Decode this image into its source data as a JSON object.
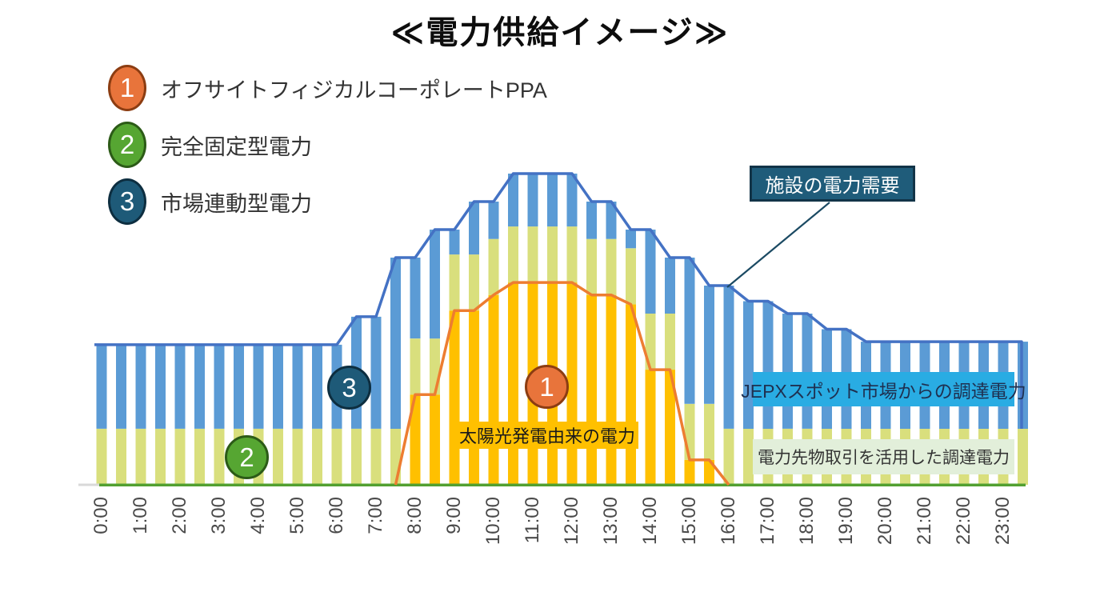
{
  "title": "≪電力供給イメージ≫",
  "legend": {
    "items": [
      {
        "number": "1",
        "label": "オフサイトフィジカルコーポレートPPA"
      },
      {
        "number": "2",
        "label": "完全固定型電力"
      },
      {
        "number": "3",
        "label": "市場連動型電力"
      }
    ]
  },
  "annotations": {
    "demand_callout": "施設の電力需要",
    "jepx_area": "JEPXスポット市場からの調達電力",
    "futures_area": "電力先物取引を活用した調達電力",
    "solar_area": "太陽光発電由来の電力",
    "chart_badge_1": "1",
    "chart_badge_2": "2",
    "chart_badge_3": "3"
  },
  "colors": {
    "bar_blue": "#5B9BD5",
    "bar_yellow": "#D9DF7D",
    "bar_orange": "#FFC000",
    "demand_line": "#4472C4",
    "solar_line": "#ED7D31",
    "axis_green": "#52A031",
    "axis_stub_gray": "#D9D9D9",
    "badge1_fill": "#E8743B",
    "badge1_border": "#8C3D12",
    "badge2_fill": "#56A632",
    "badge2_border": "#2C5B17",
    "badge3_fill": "#1E5A78",
    "badge3_border": "#0D2E40",
    "demand_box_bg": "#1F5C7A",
    "demand_box_border": "#123448",
    "jepx_box_bg": "#29ACE3",
    "jepx_box_text": "#1F3050",
    "futures_box_bg": "#E2EFDA",
    "solar_box_bg": "#FFC000",
    "leader_line": "#1B4A63",
    "tick_text": "#4A4A4A"
  },
  "chart_data": {
    "type": "bar",
    "subtype": "stacked 30-min bars (striped look) with stepped demand line and solar output line",
    "x_tick_labels": [
      "0:00",
      "1:00",
      "2:00",
      "3:00",
      "4:00",
      "5:00",
      "6:00",
      "7:00",
      "8:00",
      "9:00",
      "10:00",
      "11:00",
      "12:00",
      "13:00",
      "14:00",
      "15:00",
      "16:00",
      "17:00",
      "18:00",
      "19:00",
      "20:00",
      "21:00",
      "22:00",
      "23:00"
    ],
    "slots_per_hour": 2,
    "unit": "relative power (100 = peak demand; chart shows no numeric axis)",
    "ylim": [
      0,
      100
    ],
    "grid": false,
    "legend_position": "annotation boxes on plot",
    "series": [
      {
        "name": "太陽光発電由来の電力（オフサイトフィジカルコーポレートPPA）",
        "color": "#FFC000",
        "values": [
          0,
          0,
          0,
          0,
          0,
          0,
          0,
          0,
          0,
          0,
          0,
          0,
          0,
          0,
          0,
          0,
          29,
          29,
          56,
          56,
          61,
          65,
          65,
          65,
          65,
          61,
          61,
          58,
          37,
          37,
          8,
          8,
          0,
          0,
          0,
          0,
          0,
          0,
          0,
          0,
          0,
          0,
          0,
          0,
          0,
          0,
          0,
          0
        ]
      },
      {
        "name": "電力先物取引を活用した調達電力（完全固定型電力）",
        "color": "#D9DF7D",
        "values": [
          18,
          18,
          18,
          18,
          18,
          18,
          18,
          18,
          18,
          18,
          18,
          18,
          18,
          18,
          18,
          18,
          18,
          18,
          18,
          18,
          18,
          18,
          18,
          18,
          18,
          18,
          18,
          18,
          18,
          18,
          18,
          18,
          18,
          18,
          18,
          18,
          18,
          18,
          18,
          18,
          18,
          18,
          18,
          18,
          18,
          18,
          18,
          18
        ]
      },
      {
        "name": "JEPXスポット市場からの調達電力（市場連動型電力）",
        "color": "#5B9BD5",
        "values": [
          27,
          27,
          27,
          27,
          27,
          27,
          27,
          27,
          27,
          27,
          27,
          27,
          27,
          36,
          36,
          55,
          26,
          35,
          8,
          17,
          12,
          17,
          17,
          17,
          17,
          12,
          12,
          6,
          27,
          18,
          47,
          38,
          46,
          41,
          41,
          37,
          37,
          32,
          32,
          28,
          28,
          28,
          28,
          28,
          28,
          28,
          28,
          28
        ]
      }
    ],
    "lines": [
      {
        "name": "施設の電力需要",
        "color": "#4472C4",
        "values": [
          45,
          45,
          45,
          45,
          45,
          45,
          45,
          45,
          45,
          45,
          45,
          45,
          45,
          54,
          54,
          73,
          73,
          82,
          82,
          91,
          91,
          100,
          100,
          100,
          100,
          91,
          91,
          82,
          82,
          73,
          73,
          64,
          64,
          59,
          59,
          55,
          55,
          50,
          50,
          46,
          46,
          46,
          46,
          46,
          46,
          46,
          46,
          46
        ]
      },
      {
        "name": "太陽光発電出力（太陽光発電由来の電力の上端）",
        "color": "#ED7D31",
        "slot_range": [
          15,
          32
        ]
      }
    ]
  }
}
